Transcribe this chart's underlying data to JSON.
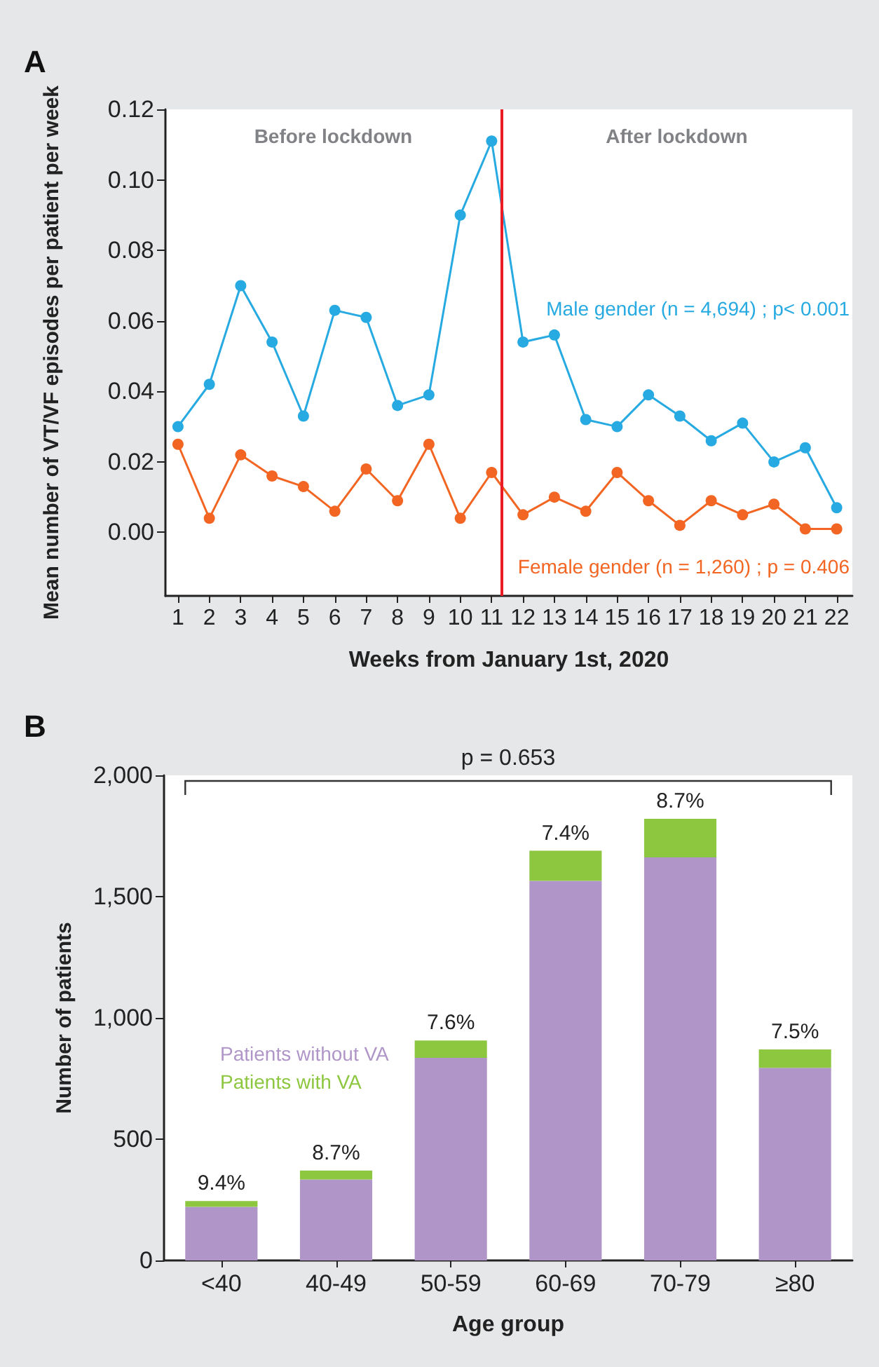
{
  "chart_data": [
    {
      "type": "line",
      "title": "A",
      "xlabel": "Weeks from January 1st, 2020",
      "ylabel": "Mean number of VT/VF episodes per patient per week",
      "x": [
        1,
        2,
        3,
        4,
        5,
        6,
        7,
        8,
        9,
        10,
        11,
        12,
        13,
        14,
        15,
        16,
        17,
        18,
        19,
        20,
        21,
        22
      ],
      "series": [
        {
          "name": "Male gender (n = 4,694) ; p< 0.001",
          "color": "#27aae1",
          "values": [
            0.03,
            0.042,
            0.07,
            0.054,
            0.033,
            0.063,
            0.061,
            0.036,
            0.039,
            0.09,
            0.111,
            0.054,
            0.056,
            0.032,
            0.03,
            0.039,
            0.033,
            0.026,
            0.031,
            0.02,
            0.024,
            0.007
          ]
        },
        {
          "name": "Female gender (n = 1,260) ; p = 0.406",
          "color": "#f26522",
          "values": [
            0.025,
            0.004,
            0.022,
            0.016,
            0.013,
            0.006,
            0.018,
            0.009,
            0.025,
            0.004,
            0.017,
            0.005,
            0.01,
            0.006,
            0.017,
            0.009,
            0.002,
            0.009,
            0.005,
            0.008,
            0.001,
            0.001
          ]
        }
      ],
      "xlim": [
        0.6,
        22.5
      ],
      "xticks": [
        1,
        2,
        3,
        4,
        5,
        6,
        7,
        8,
        9,
        10,
        11,
        12,
        13,
        14,
        15,
        16,
        17,
        18,
        19,
        20,
        21,
        22
      ],
      "ylim": [
        -0.018,
        0.12
      ],
      "yticks": [
        {
          "value": 0,
          "label": "0.00"
        },
        {
          "value": 0.02,
          "label": "0.02"
        },
        {
          "value": 0.04,
          "label": "0.04"
        },
        {
          "value": 0.06,
          "label": "0.06"
        },
        {
          "value": 0.08,
          "label": "0.08"
        },
        {
          "value": 0.1,
          "label": "0.10"
        },
        {
          "value": 0.12,
          "label": "0.12"
        }
      ],
      "ref_lines": [
        {
          "axis": "x",
          "value": 11.3,
          "color": "#ed1c24"
        }
      ],
      "annotations": [
        "Before lockdown",
        "After lockdown"
      ],
      "marker": "circle",
      "grid": false,
      "legend": false
    },
    {
      "type": "bar",
      "title": "B",
      "xlabel": "Age group",
      "ylabel": "Number of patients",
      "categories": [
        "<40",
        "40-49",
        "50-59",
        "60-69",
        "70-79",
        "≥80"
      ],
      "stacked": true,
      "series": [
        {
          "name": "Patients without VA",
          "color": "#b096c8",
          "values": [
            221,
            334,
            835,
            1565,
            1662,
            794
          ]
        },
        {
          "name": "Patients with VA",
          "color": "#8dc63f",
          "values": [
            24,
            37,
            72,
            124,
            159,
            76
          ]
        }
      ],
      "ylim": [
        0,
        2000
      ],
      "yticks": [
        0,
        500,
        {
          "value": 1000,
          "label": "1,000"
        },
        {
          "value": 1500,
          "label": "1,500"
        },
        {
          "value": 2000,
          "label": "2,000"
        }
      ],
      "annotations": [
        "p = 0.653",
        {
          "text": "9.4%",
          "x": "<40",
          "y": 245
        },
        {
          "text": "8.7%",
          "x": "40-49",
          "y": 371
        },
        {
          "text": "7.6%",
          "x": "50-59",
          "y": 907
        },
        {
          "text": "7.4%",
          "x": "60-69",
          "y": 1689
        },
        {
          "text": "8.7%",
          "x": "70-79",
          "y": 1821
        },
        {
          "text": "7.5%",
          "x": "≥80",
          "y": 870
        }
      ],
      "grid": false,
      "legend": "left"
    }
  ]
}
